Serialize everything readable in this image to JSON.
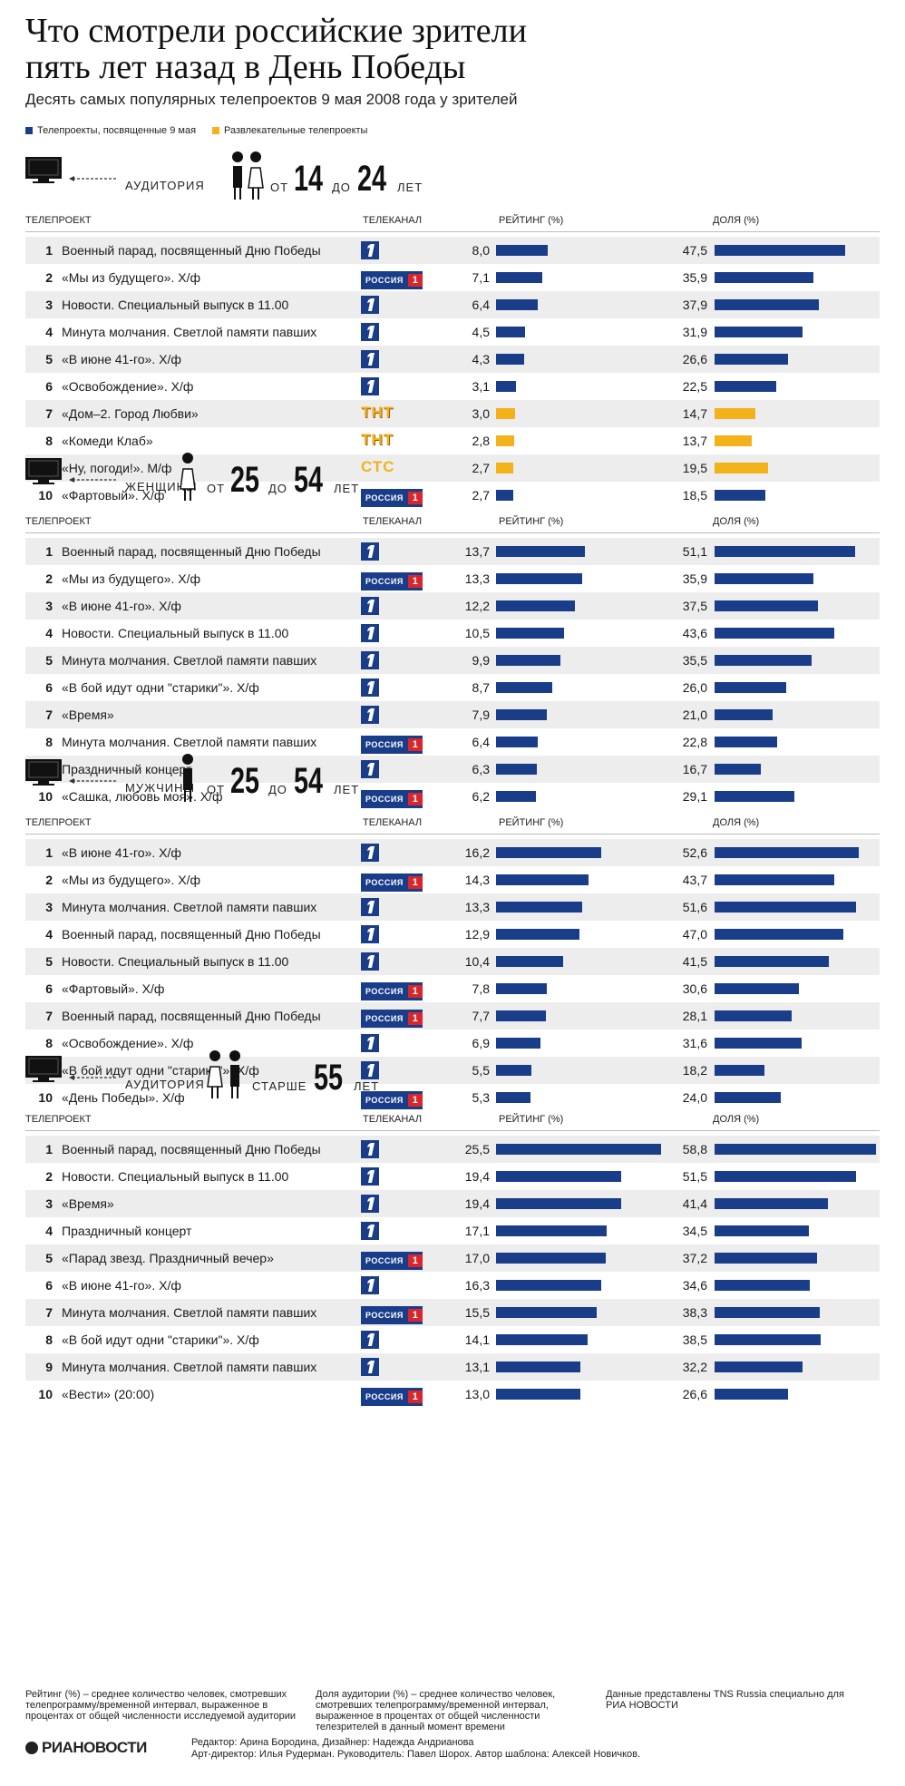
{
  "header": {
    "title_line1": "Что смотрели российские зрители",
    "title_line2": "пять лет назад в День Победы",
    "subtitle": "Десять самых популярных телепроектов 9 мая 2008 года у зрителей"
  },
  "legend": {
    "items": [
      {
        "label": "Телепроекты, посвященные 9 мая",
        "color": "#1a3d8a"
      },
      {
        "label": "Развлекательные телепроекты",
        "color": "#f3b21a"
      }
    ]
  },
  "columns": {
    "project": "ТЕЛЕПРОЕКТ",
    "channel": "ТЕЛЕКАНАЛ",
    "rating": "РЕЙТИНГ (%)",
    "share": "ДОЛЯ (%)"
  },
  "colors": {
    "victory": "#1a3d8a",
    "entertainment": "#f3b21a",
    "row_alt": "#ededed"
  },
  "chart_data": [
    {
      "type": "bar",
      "audience": {
        "pre": "АУДИТОРИЯ",
        "from_word": "ОТ",
        "from": "14",
        "to_word": "ДО",
        "to": "24",
        "unit": "ЛЕТ"
      },
      "rows": [
        {
          "rank": "1",
          "name": "Военный парад, посвященный Дню Победы",
          "channel": "first-channel-icon",
          "rating": 8.0,
          "rating_label": "8,0",
          "share": 47.5,
          "share_label": "47,5",
          "category": "victory"
        },
        {
          "rank": "2",
          "name": "«Мы из будущего». Х/ф",
          "channel": "russia1-icon",
          "rating": 7.1,
          "rating_label": "7,1",
          "share": 35.9,
          "share_label": "35,9",
          "category": "victory"
        },
        {
          "rank": "3",
          "name": "Новости. Специальный выпуск в 11.00",
          "channel": "first-channel-icon",
          "rating": 6.4,
          "rating_label": "6,4",
          "share": 37.9,
          "share_label": "37,9",
          "category": "victory"
        },
        {
          "rank": "4",
          "name": "Минута молчания. Светлой памяти павших",
          "channel": "first-channel-icon",
          "rating": 4.5,
          "rating_label": "4,5",
          "share": 31.9,
          "share_label": "31,9",
          "category": "victory"
        },
        {
          "rank": "5",
          "name": "«В июне 41-го». Х/ф",
          "channel": "first-channel-icon",
          "rating": 4.3,
          "rating_label": "4,3",
          "share": 26.6,
          "share_label": "26,6",
          "category": "victory"
        },
        {
          "rank": "6",
          "name": "«Освобождение». Х/ф",
          "channel": "first-channel-icon",
          "rating": 3.1,
          "rating_label": "3,1",
          "share": 22.5,
          "share_label": "22,5",
          "category": "victory"
        },
        {
          "rank": "7",
          "name": "«Дом–2. Город Любви»",
          "channel": "tnt-icon",
          "rating": 3.0,
          "rating_label": "3,0",
          "share": 14.7,
          "share_label": "14,7",
          "category": "entertainment"
        },
        {
          "rank": "8",
          "name": "«Комеди Клаб»",
          "channel": "tnt-icon",
          "rating": 2.8,
          "rating_label": "2,8",
          "share": 13.7,
          "share_label": "13,7",
          "category": "entertainment"
        },
        {
          "rank": "9",
          "name": "«Ну, погоди!». М/ф",
          "channel": "stc-icon",
          "rating": 2.7,
          "rating_label": "2,7",
          "share": 19.5,
          "share_label": "19,5",
          "category": "entertainment"
        },
        {
          "rank": "10",
          "name": "«Фартовый». Х/ф",
          "channel": "russia1-icon",
          "rating": 2.7,
          "rating_label": "2,7",
          "share": 18.5,
          "share_label": "18,5",
          "category": "victory"
        }
      ]
    },
    {
      "type": "bar",
      "audience": {
        "pre": "ЖЕНЩИНЫ",
        "from_word": "ОТ",
        "from": "25",
        "to_word": "ДО",
        "to": "54",
        "unit": "ЛЕТ"
      },
      "rows": [
        {
          "rank": "1",
          "name": "Военный парад, посвященный Дню Победы",
          "channel": "first-channel-icon",
          "rating": 13.7,
          "rating_label": "13,7",
          "share": 51.1,
          "share_label": "51,1",
          "category": "victory"
        },
        {
          "rank": "2",
          "name": "«Мы из будущего». Х/ф",
          "channel": "russia1-icon",
          "rating": 13.3,
          "rating_label": "13,3",
          "share": 35.9,
          "share_label": "35,9",
          "category": "victory"
        },
        {
          "rank": "3",
          "name": "«В июне 41-го». Х/ф",
          "channel": "first-channel-icon",
          "rating": 12.2,
          "rating_label": "12,2",
          "share": 37.5,
          "share_label": "37,5",
          "category": "victory"
        },
        {
          "rank": "4",
          "name": "Новости. Специальный выпуск в 11.00",
          "channel": "first-channel-icon",
          "rating": 10.5,
          "rating_label": "10,5",
          "share": 43.6,
          "share_label": "43,6",
          "category": "victory"
        },
        {
          "rank": "5",
          "name": "Минута молчания. Светлой памяти павших",
          "channel": "first-channel-icon",
          "rating": 9.9,
          "rating_label": "9,9",
          "share": 35.5,
          "share_label": "35,5",
          "category": "victory"
        },
        {
          "rank": "6",
          "name": "«В бой идут одни \"старики\"». Х/ф",
          "channel": "first-channel-icon",
          "rating": 8.7,
          "rating_label": "8,7",
          "share": 26.0,
          "share_label": "26,0",
          "category": "victory"
        },
        {
          "rank": "7",
          "name": "«Время»",
          "channel": "first-channel-icon",
          "rating": 7.9,
          "rating_label": "7,9",
          "share": 21.0,
          "share_label": "21,0",
          "category": "victory"
        },
        {
          "rank": "8",
          "name": "Минута молчания. Светлой памяти павших",
          "channel": "russia1-icon",
          "rating": 6.4,
          "rating_label": "6,4",
          "share": 22.8,
          "share_label": "22,8",
          "category": "victory"
        },
        {
          "rank": "9",
          "name": "Праздничный концерт",
          "channel": "first-channel-icon",
          "rating": 6.3,
          "rating_label": "6,3",
          "share": 16.7,
          "share_label": "16,7",
          "category": "victory"
        },
        {
          "rank": "10",
          "name": "«Сашка, любовь моя». Х/ф",
          "channel": "russia1-icon",
          "rating": 6.2,
          "rating_label": "6,2",
          "share": 29.1,
          "share_label": "29,1",
          "category": "victory"
        }
      ]
    },
    {
      "type": "bar",
      "audience": {
        "pre": "МУЖЧИНЫ",
        "from_word": "ОТ",
        "from": "25",
        "to_word": "ДО",
        "to": "54",
        "unit": "ЛЕТ"
      },
      "rows": [
        {
          "rank": "1",
          "name": "«В июне 41-го». Х/ф",
          "channel": "first-channel-icon",
          "rating": 16.2,
          "rating_label": "16,2",
          "share": 52.6,
          "share_label": "52,6",
          "category": "victory"
        },
        {
          "rank": "2",
          "name": "«Мы из будущего». Х/ф",
          "channel": "russia1-icon",
          "rating": 14.3,
          "rating_label": "14,3",
          "share": 43.7,
          "share_label": "43,7",
          "category": "victory"
        },
        {
          "rank": "3",
          "name": "Минута молчания. Светлой памяти павших",
          "channel": "first-channel-icon",
          "rating": 13.3,
          "rating_label": "13,3",
          "share": 51.6,
          "share_label": "51,6",
          "category": "victory"
        },
        {
          "rank": "4",
          "name": "Военный парад, посвященный Дню Победы",
          "channel": "first-channel-icon",
          "rating": 12.9,
          "rating_label": "12,9",
          "share": 47.0,
          "share_label": "47,0",
          "category": "victory"
        },
        {
          "rank": "5",
          "name": "Новости. Специальный выпуск в 11.00",
          "channel": "first-channel-icon",
          "rating": 10.4,
          "rating_label": "10,4",
          "share": 41.5,
          "share_label": "41,5",
          "category": "victory"
        },
        {
          "rank": "6",
          "name": "«Фартовый». Х/ф",
          "channel": "russia1-icon",
          "rating": 7.8,
          "rating_label": "7,8",
          "share": 30.6,
          "share_label": "30,6",
          "category": "victory"
        },
        {
          "rank": "7",
          "name": "Военный парад, посвященный Дню Победы",
          "channel": "russia1-icon",
          "rating": 7.7,
          "rating_label": "7,7",
          "share": 28.1,
          "share_label": "28,1",
          "category": "victory"
        },
        {
          "rank": "8",
          "name": "«Освобождение». Х/ф",
          "channel": "first-channel-icon",
          "rating": 6.9,
          "rating_label": "6,9",
          "share": 31.6,
          "share_label": "31,6",
          "category": "victory"
        },
        {
          "rank": "9",
          "name": "«В бой идут одни \"старики\"». Х/ф",
          "channel": "first-channel-icon",
          "rating": 5.5,
          "rating_label": "5,5",
          "share": 18.2,
          "share_label": "18,2",
          "category": "victory"
        },
        {
          "rank": "10",
          "name": "«День Победы». Х/ф",
          "channel": "russia1-icon",
          "rating": 5.3,
          "rating_label": "5,3",
          "share": 24.0,
          "share_label": "24,0",
          "category": "victory"
        }
      ]
    },
    {
      "type": "bar",
      "audience": {
        "pre": "АУДИТОРИЯ",
        "from_word": "СТАРШЕ",
        "from": "55",
        "to_word": "",
        "to": "",
        "unit": "ЛЕТ"
      },
      "rows": [
        {
          "rank": "1",
          "name": "Военный парад, посвященный Дню Победы",
          "channel": "first-channel-icon",
          "rating": 25.5,
          "rating_label": "25,5",
          "share": 58.8,
          "share_label": "58,8",
          "category": "victory"
        },
        {
          "rank": "2",
          "name": "Новости. Специальный выпуск в 11.00",
          "channel": "first-channel-icon",
          "rating": 19.4,
          "rating_label": "19,4",
          "share": 51.5,
          "share_label": "51,5",
          "category": "victory"
        },
        {
          "rank": "3",
          "name": "«Время»",
          "channel": "first-channel-icon",
          "rating": 19.4,
          "rating_label": "19,4",
          "share": 41.4,
          "share_label": "41,4",
          "category": "victory"
        },
        {
          "rank": "4",
          "name": "Праздничный концерт",
          "channel": "first-channel-icon",
          "rating": 17.1,
          "rating_label": "17,1",
          "share": 34.5,
          "share_label": "34,5",
          "category": "victory"
        },
        {
          "rank": "5",
          "name": "«Парад звезд. Праздничный вечер»",
          "channel": "russia1-icon",
          "rating": 17.0,
          "rating_label": "17,0",
          "share": 37.2,
          "share_label": "37,2",
          "category": "victory"
        },
        {
          "rank": "6",
          "name": "«В июне 41-го». Х/ф",
          "channel": "first-channel-icon",
          "rating": 16.3,
          "rating_label": "16,3",
          "share": 34.6,
          "share_label": "34,6",
          "category": "victory"
        },
        {
          "rank": "7",
          "name": "Минута молчания. Светлой памяти павших",
          "channel": "russia1-icon",
          "rating": 15.5,
          "rating_label": "15,5",
          "share": 38.3,
          "share_label": "38,3",
          "category": "victory"
        },
        {
          "rank": "8",
          "name": "«В бой идут одни \"старики\"». Х/ф",
          "channel": "first-channel-icon",
          "rating": 14.1,
          "rating_label": "14,1",
          "share": 38.5,
          "share_label": "38,5",
          "category": "victory"
        },
        {
          "rank": "9",
          "name": "Минута молчания. Светлой памяти павших",
          "channel": "first-channel-icon",
          "rating": 13.1,
          "rating_label": "13,1",
          "share": 32.2,
          "share_label": "32,2",
          "category": "victory"
        },
        {
          "rank": "10",
          "name": "«Вести» (20:00)",
          "channel": "russia1-icon",
          "rating": 13.0,
          "rating_label": "13,0",
          "share": 26.6,
          "share_label": "26,6",
          "category": "victory"
        }
      ]
    }
  ],
  "channel_logos": {
    "russia1": "РОССИЯ",
    "russia1_num": "1",
    "tnt": "ТНТ",
    "stc": "СТС"
  },
  "footnotes": {
    "rating_def": "Рейтинг (%) – среднее количество человек, смотревших телепрограмму/временной интервал, выраженное в процентах от общей численности исследуемой аудитории",
    "share_def": "Доля аудитории (%) – среднее количество человек, смотревших телепрограмму/временной интервал, выраженное в процентах от общей численности телезрителей в данный момент времени",
    "source": "Данные представлены TNS Russia специально для РИА НОВОСТИ"
  },
  "credits": {
    "logo": "РИАНОВОСТИ",
    "line1": "Редактор: Арина Бородина, Дизайнер: Надежда Андрианова",
    "line2": "Арт-директор: Илья Рудерман. Руководитель: Павел Шорох. Автор шаблона: Алексей Новичков."
  }
}
